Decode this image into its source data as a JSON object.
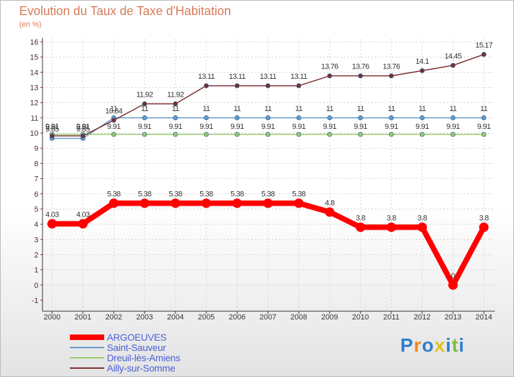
{
  "header": {
    "title": "Evolution du Taux de Taxe d'Habitation",
    "subtitle": "(en %)"
  },
  "brand": {
    "text": "Proxiti"
  },
  "colors": {
    "argoeuves": "#ff0000",
    "saint_sauveur": "#6699cc",
    "dreuil": "#99cc66",
    "ailly": "#7a2c2c",
    "title": "#d77a58",
    "legend_text": "#4a5fd6"
  },
  "chart_data": {
    "type": "line",
    "title": "Evolution du Taux de Taxe d'Habitation",
    "ylabel": "(en %)",
    "x": [
      "2000",
      "2001",
      "2002",
      "2003",
      "2004",
      "2005",
      "2006",
      "2007",
      "2008",
      "2009",
      "2010",
      "2011",
      "2012",
      "2013",
      "2014"
    ],
    "ylim": [
      -1,
      16
    ],
    "yticks": [
      -1,
      0,
      1,
      2,
      3,
      4,
      5,
      6,
      7,
      8,
      9,
      10,
      11,
      12,
      13,
      14,
      15,
      16
    ],
    "series": [
      {
        "name": "ARGOEUVES",
        "values": [
          4.03,
          4.03,
          5.38,
          5.38,
          5.38,
          5.38,
          5.38,
          5.38,
          5.38,
          4.8,
          3.8,
          3.8,
          3.8,
          0,
          3.8
        ],
        "labels": [
          "4.03",
          "4.03",
          "5.38",
          "5.38",
          "5.38",
          "5.38",
          "5.38",
          "5.38",
          "5.38",
          "4.8",
          "3.8",
          "3.8",
          "3.8",
          "0",
          "3.8"
        ]
      },
      {
        "name": "Saint-Sauveur",
        "values": [
          9.65,
          9.65,
          11,
          11,
          11,
          11,
          11,
          11,
          11,
          11,
          11,
          11,
          11,
          11,
          11
        ],
        "labels": [
          "9.65",
          "9.65",
          "11",
          "11",
          "11",
          "11",
          "11",
          "11",
          "11",
          "11",
          "11",
          "11",
          "11",
          "11",
          "11"
        ]
      },
      {
        "name": "Dreuil-lès-Amiens",
        "values": [
          9.91,
          9.91,
          9.91,
          9.91,
          9.91,
          9.91,
          9.91,
          9.91,
          9.91,
          9.91,
          9.91,
          9.91,
          9.91,
          9.91,
          9.91
        ],
        "labels": [
          "9.91",
          "9.91",
          "9.91",
          "9.91",
          "9.91",
          "9.91",
          "9.91",
          "9.91",
          "9.91",
          "9.91",
          "9.91",
          "9.91",
          "9.91",
          "9.91",
          "9.91"
        ]
      },
      {
        "name": "Ailly-sur-Somme",
        "values": [
          9.81,
          9.81,
          10.84,
          11.92,
          11.92,
          13.11,
          13.11,
          13.11,
          13.11,
          13.76,
          13.76,
          13.76,
          14.1,
          14.45,
          15.17
        ],
        "labels": [
          "9.81",
          "9.81",
          "10.84",
          "11.92",
          "11.92",
          "13.11",
          "13.11",
          "13.11",
          "13.11",
          "13.76",
          "13.76",
          "13.76",
          "14.1",
          "14.45",
          "15.17"
        ]
      }
    ],
    "legend_position": "bottom-left"
  }
}
